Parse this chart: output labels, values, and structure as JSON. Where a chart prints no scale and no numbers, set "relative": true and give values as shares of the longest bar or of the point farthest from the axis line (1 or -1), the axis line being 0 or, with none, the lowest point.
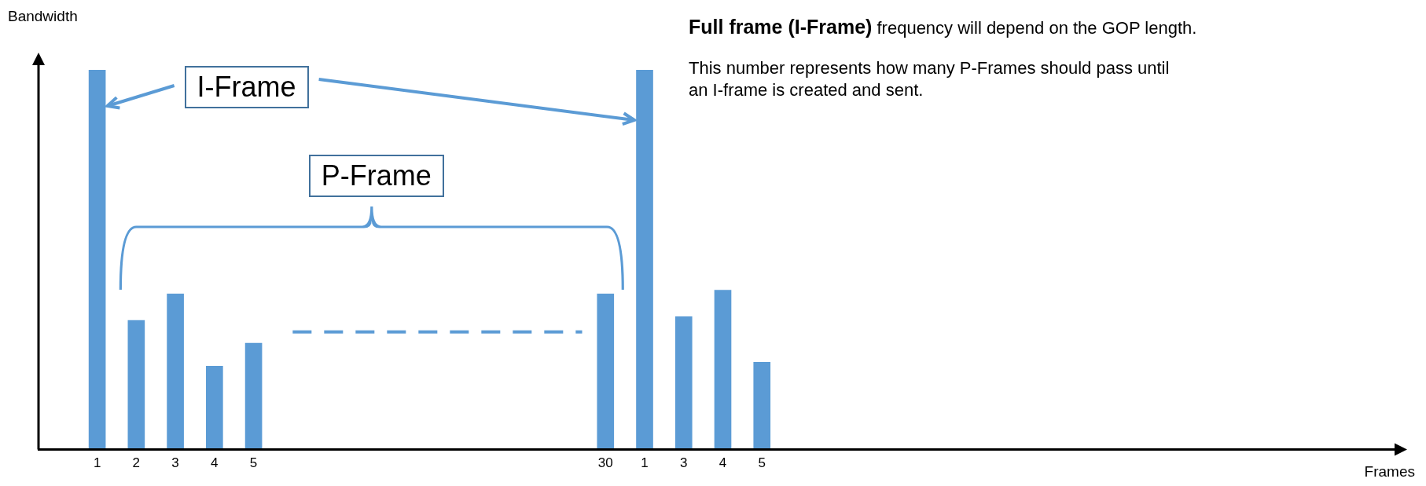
{
  "chart_data": {
    "type": "bar",
    "relative": true,
    "color": "#5b9bd5",
    "xlabel": "Frames",
    "ylabel": "Bandwidth",
    "categories": [
      null,
      "1",
      "2",
      "3",
      "4",
      "5",
      null,
      null,
      null,
      null,
      null,
      null,
      null,
      null,
      "30",
      "1",
      "3",
      "4",
      "5",
      null,
      null,
      null,
      null,
      null,
      null,
      null,
      null,
      null,
      null,
      null,
      null,
      null,
      null,
      null,
      null
    ],
    "values": [
      null,
      1,
      0.34,
      0.41,
      0.22,
      0.28,
      null,
      null,
      null,
      null,
      null,
      null,
      null,
      null,
      0.41,
      1,
      0.35,
      0.42,
      0.23,
      null,
      null,
      null,
      null,
      null,
      null,
      null,
      null,
      null,
      null,
      null,
      null,
      null,
      null,
      null,
      null
    ],
    "annotations": [
      "I-Frame",
      "P-Frame",
      "Full frame (I-Frame)",
      "frequency will depend on the GOP length.",
      "This number represents how many P-Frames should pass until an I-frame is created and sent."
    ],
    "grid": false,
    "legend": false
  }
}
